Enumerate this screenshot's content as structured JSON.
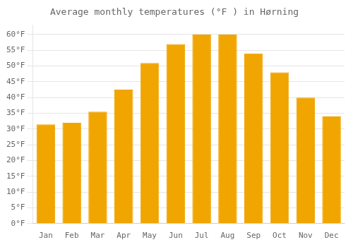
{
  "chart_data": {
    "type": "bar",
    "title": "Average monthly temperatures (°F ) in Hørning",
    "categories": [
      "Jan",
      "Feb",
      "Mar",
      "Apr",
      "May",
      "Jun",
      "Jul",
      "Aug",
      "Sep",
      "Oct",
      "Nov",
      "Dec"
    ],
    "values": [
      31.5,
      32.0,
      35.5,
      42.5,
      51.0,
      57.0,
      60.0,
      60.0,
      54.0,
      48.0,
      40.0,
      34.0
    ],
    "color": "#F0A500",
    "ylim": [
      0,
      63
    ],
    "yticks": [
      {
        "value": 0,
        "label": "0°F"
      },
      {
        "value": 5,
        "label": "5°F"
      },
      {
        "value": 10,
        "label": "10°F"
      },
      {
        "value": 15,
        "label": "15°F"
      },
      {
        "value": 20,
        "label": "20°F"
      },
      {
        "value": 25,
        "label": "25°F"
      },
      {
        "value": 30,
        "label": "30°F"
      },
      {
        "value": 35,
        "label": "35°F"
      },
      {
        "value": 40,
        "label": "40°F"
      },
      {
        "value": 45,
        "label": "45°F"
      },
      {
        "value": 50,
        "label": "50°F"
      },
      {
        "value": 55,
        "label": "55°F"
      },
      {
        "value": 60,
        "label": "60°F"
      }
    ],
    "grid": true
  }
}
